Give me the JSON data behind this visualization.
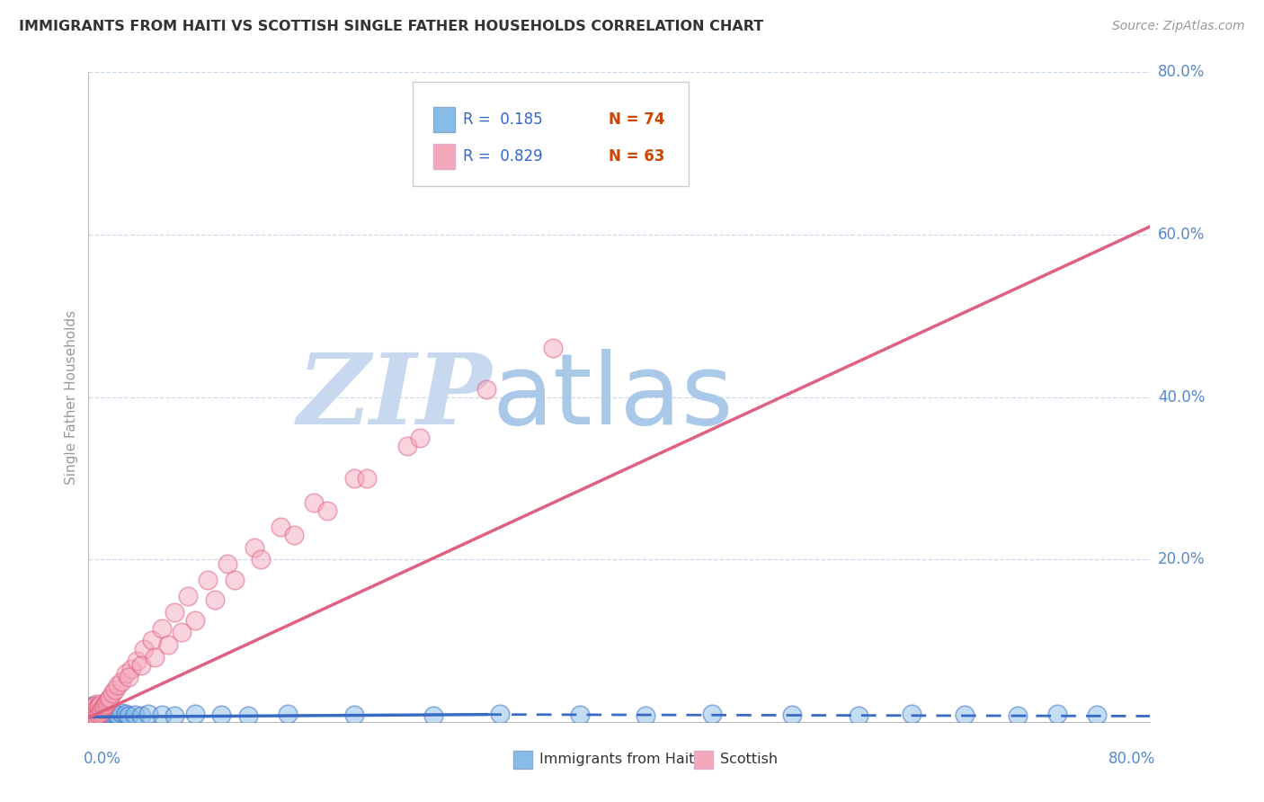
{
  "title": "IMMIGRANTS FROM HAITI VS SCOTTISH SINGLE FATHER HOUSEHOLDS CORRELATION CHART",
  "source": "Source: ZipAtlas.com",
  "ylabel": "Single Father Households",
  "xmin": 0.0,
  "xmax": 0.8,
  "ymin": 0.0,
  "ymax": 0.8,
  "ytick_vals": [
    0.2,
    0.4,
    0.6,
    0.8
  ],
  "ytick_labels": [
    "20.0%",
    "40.0%",
    "60.0%",
    "80.0%"
  ],
  "legend_r1": "R =  0.185",
  "legend_n1": "N = 74",
  "legend_r2": "R =  0.829",
  "legend_n2": "N = 63",
  "series1_label": "Immigrants from Haiti",
  "series2_label": "Scottish",
  "color1": "#88bce8",
  "color2": "#f5a8bc",
  "trendline1_color": "#3a6bc4",
  "trendline2_color": "#e06080",
  "watermark_zip": "ZIP",
  "watermark_atlas": "atlas",
  "watermark_color_zip": "#c8d8ee",
  "watermark_color_atlas": "#aac8e8",
  "series1_x": [
    0.001,
    0.001,
    0.001,
    0.002,
    0.002,
    0.002,
    0.002,
    0.003,
    0.003,
    0.003,
    0.003,
    0.003,
    0.003,
    0.004,
    0.004,
    0.004,
    0.004,
    0.004,
    0.005,
    0.005,
    0.005,
    0.005,
    0.005,
    0.006,
    0.006,
    0.006,
    0.006,
    0.007,
    0.007,
    0.007,
    0.007,
    0.008,
    0.008,
    0.008,
    0.009,
    0.009,
    0.01,
    0.01,
    0.011,
    0.011,
    0.012,
    0.013,
    0.014,
    0.015,
    0.016,
    0.017,
    0.018,
    0.02,
    0.022,
    0.025,
    0.028,
    0.03,
    0.035,
    0.04,
    0.045,
    0.055,
    0.065,
    0.08,
    0.1,
    0.12,
    0.15,
    0.2,
    0.26,
    0.31,
    0.37,
    0.42,
    0.47,
    0.53,
    0.58,
    0.62,
    0.66,
    0.7,
    0.73,
    0.76
  ],
  "series1_y": [
    0.005,
    0.008,
    0.012,
    0.004,
    0.007,
    0.01,
    0.015,
    0.003,
    0.006,
    0.009,
    0.012,
    0.016,
    0.02,
    0.004,
    0.007,
    0.011,
    0.015,
    0.02,
    0.003,
    0.006,
    0.009,
    0.013,
    0.018,
    0.004,
    0.007,
    0.011,
    0.016,
    0.004,
    0.008,
    0.012,
    0.018,
    0.005,
    0.009,
    0.014,
    0.005,
    0.01,
    0.005,
    0.01,
    0.006,
    0.012,
    0.007,
    0.007,
    0.008,
    0.008,
    0.009,
    0.009,
    0.01,
    0.01,
    0.009,
    0.011,
    0.01,
    0.008,
    0.009,
    0.008,
    0.01,
    0.009,
    0.008,
    0.01,
    0.009,
    0.008,
    0.01,
    0.009,
    0.008,
    0.01,
    0.009,
    0.008,
    0.01,
    0.009,
    0.008,
    0.01,
    0.009,
    0.008,
    0.01,
    0.009
  ],
  "series2_x": [
    0.001,
    0.001,
    0.002,
    0.002,
    0.002,
    0.003,
    0.003,
    0.003,
    0.004,
    0.004,
    0.004,
    0.005,
    0.005,
    0.006,
    0.006,
    0.006,
    0.007,
    0.007,
    0.008,
    0.008,
    0.009,
    0.009,
    0.01,
    0.011,
    0.012,
    0.013,
    0.014,
    0.015,
    0.016,
    0.018,
    0.02,
    0.022,
    0.025,
    0.028,
    0.032,
    0.036,
    0.042,
    0.048,
    0.055,
    0.065,
    0.075,
    0.09,
    0.105,
    0.125,
    0.145,
    0.17,
    0.2,
    0.24,
    0.03,
    0.04,
    0.05,
    0.06,
    0.07,
    0.08,
    0.095,
    0.11,
    0.13,
    0.155,
    0.18,
    0.21,
    0.25,
    0.3,
    0.35
  ],
  "series2_y": [
    0.005,
    0.01,
    0.006,
    0.012,
    0.018,
    0.005,
    0.01,
    0.016,
    0.006,
    0.012,
    0.018,
    0.008,
    0.015,
    0.008,
    0.014,
    0.022,
    0.01,
    0.018,
    0.01,
    0.02,
    0.012,
    0.022,
    0.015,
    0.018,
    0.02,
    0.022,
    0.025,
    0.028,
    0.03,
    0.035,
    0.04,
    0.045,
    0.05,
    0.06,
    0.065,
    0.075,
    0.09,
    0.1,
    0.115,
    0.135,
    0.155,
    0.175,
    0.195,
    0.215,
    0.24,
    0.27,
    0.3,
    0.34,
    0.055,
    0.07,
    0.08,
    0.095,
    0.11,
    0.125,
    0.15,
    0.175,
    0.2,
    0.23,
    0.26,
    0.3,
    0.35,
    0.41,
    0.46
  ],
  "trendline1_solid_end": 0.3,
  "trendline1_y_start": 0.006,
  "trendline1_y_end_solid": 0.009,
  "trendline1_y_end_dashed": 0.007,
  "trendline2_y_start": 0.005,
  "trendline2_y_end": 0.61
}
